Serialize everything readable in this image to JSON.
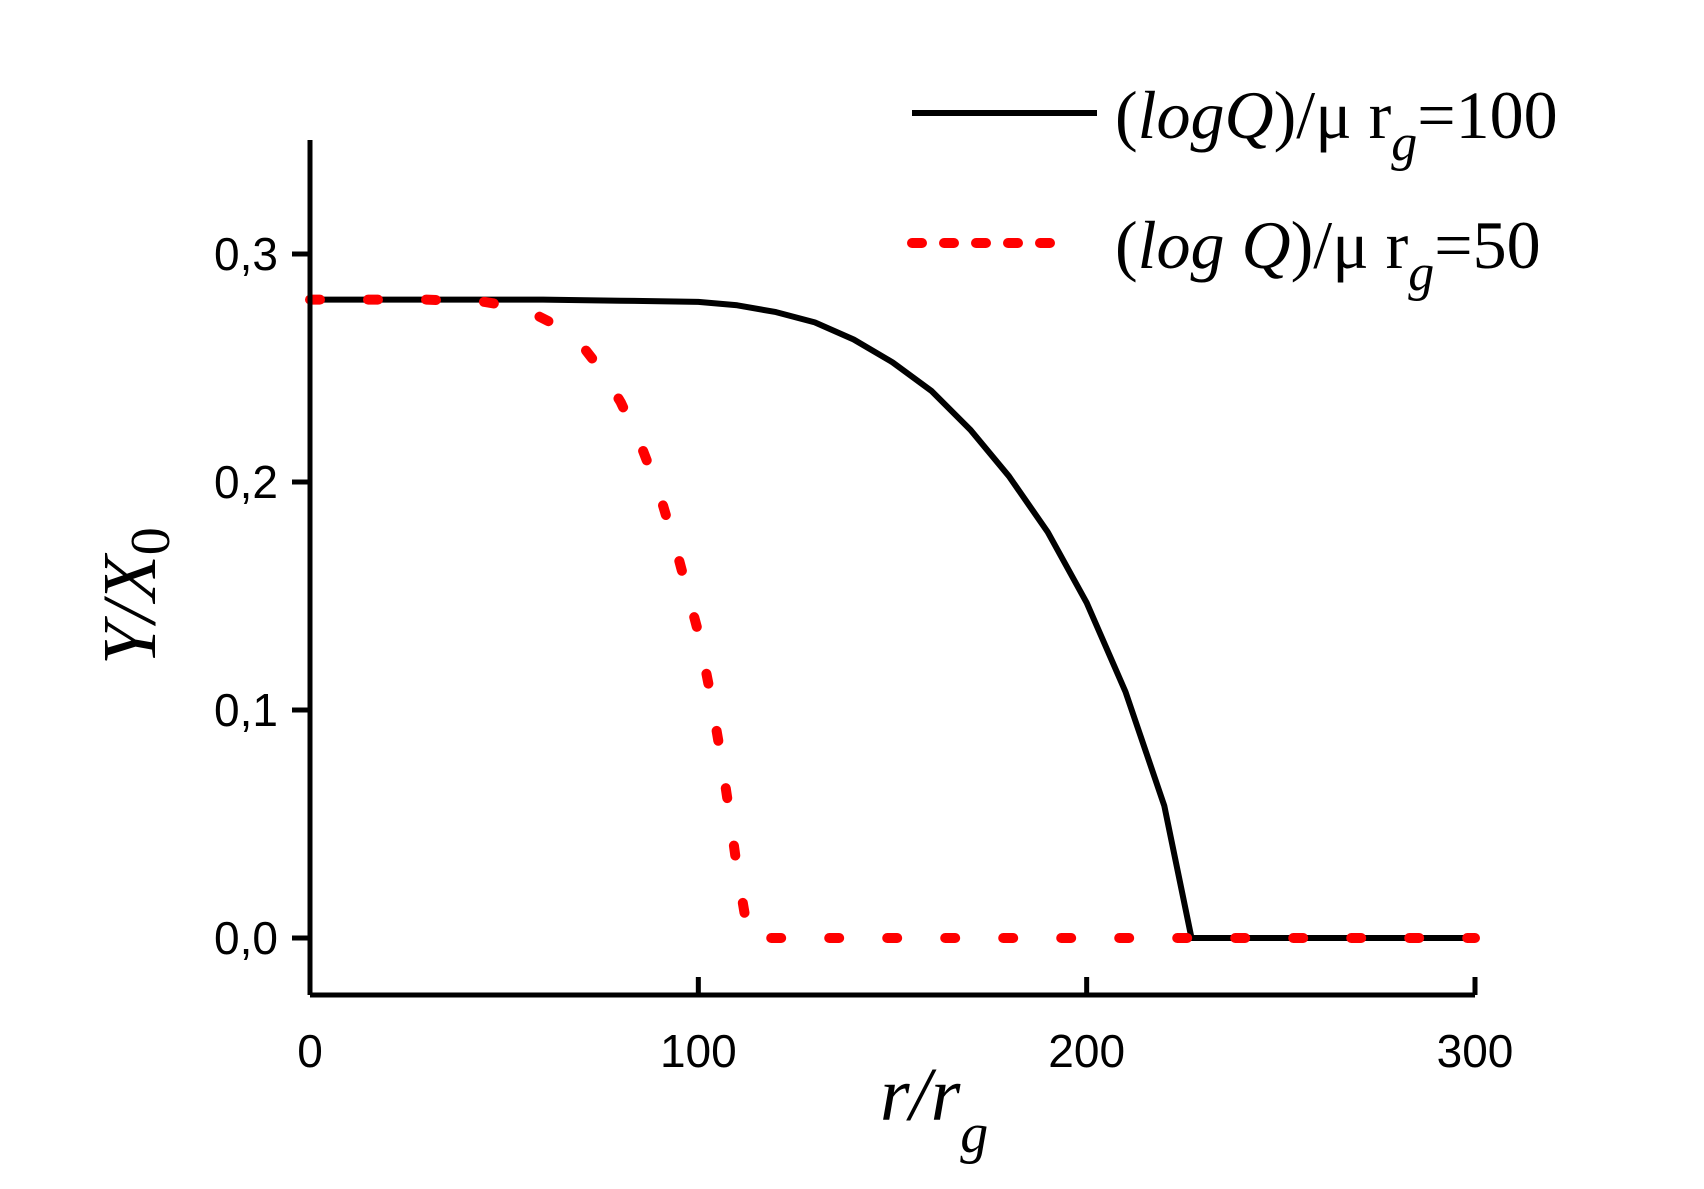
{
  "chart_data": {
    "type": "line",
    "xlabel": {
      "base": "r/r",
      "sub": "g"
    },
    "ylabel": {
      "base": "Y/X",
      "sub": "0"
    },
    "xlim": [
      0,
      300
    ],
    "ylim": [
      -0.025,
      0.35
    ],
    "x_ticks": [
      0,
      100,
      200,
      300
    ],
    "x_tick_labels": [
      "0",
      "100",
      "200",
      "300"
    ],
    "y_ticks": [
      0.0,
      0.1,
      0.2,
      0.3
    ],
    "y_tick_labels": [
      "0,0",
      "0,1",
      "0,2",
      "0,3"
    ],
    "grid": false,
    "legend_position": "top-right",
    "series": [
      {
        "legend": {
          "pre": "(",
          "it": "logQ",
          "mid": ")/μ r",
          "sub": "g",
          "post": "=100"
        },
        "color": "#000000",
        "style": "solid",
        "x": [
          0,
          20,
          40,
          60,
          80,
          100,
          110,
          120,
          130,
          140,
          150,
          160,
          170,
          180,
          190,
          200,
          210,
          220,
          227,
          230,
          240,
          260,
          280,
          300
        ],
        "y": [
          0.28,
          0.28,
          0.28,
          0.28,
          0.2795,
          0.279,
          0.2775,
          0.2745,
          0.27,
          0.2625,
          0.2525,
          0.24,
          0.223,
          0.2025,
          0.178,
          0.147,
          0.108,
          0.058,
          0.0,
          0.0,
          0.0,
          0.0,
          0.0,
          0.0
        ]
      },
      {
        "legend": {
          "pre": "(",
          "it": "log Q",
          "mid": ")/μ r",
          "sub": "g",
          "post": "=50"
        },
        "color": "#ff0000",
        "style": "dotted",
        "x": [
          0,
          15,
          30,
          45,
          55,
          62,
          70,
          75,
          80,
          85,
          90,
          95,
          100,
          103,
          106,
          108,
          110,
          112,
          113,
          120,
          150,
          200,
          250,
          300
        ],
        "y": [
          0.28,
          0.28,
          0.28,
          0.279,
          0.276,
          0.27,
          0.26,
          0.249,
          0.235,
          0.217,
          0.195,
          0.166,
          0.134,
          0.108,
          0.078,
          0.055,
          0.03,
          0.01,
          0.0,
          0.0,
          0.0,
          0.0,
          0.0,
          0.0
        ]
      }
    ]
  }
}
